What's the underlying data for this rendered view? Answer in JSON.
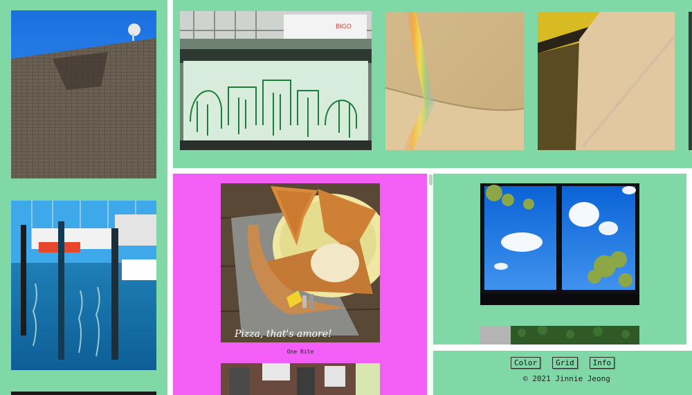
{
  "gallery": {
    "captions": {
      "pizza": "One Bite"
    },
    "pizza_overlay_text": "Pizza, that's amore!"
  },
  "nav": {
    "color_label": "Color",
    "grid_label": "Grid",
    "info_label": "Info"
  },
  "footer": {
    "copyright": "© 2021 Jinnie Jeong"
  },
  "colors": {
    "pane_green": "#7fd8a6",
    "pane_pink": "#f35ff6",
    "gutter": "#ffffff"
  }
}
